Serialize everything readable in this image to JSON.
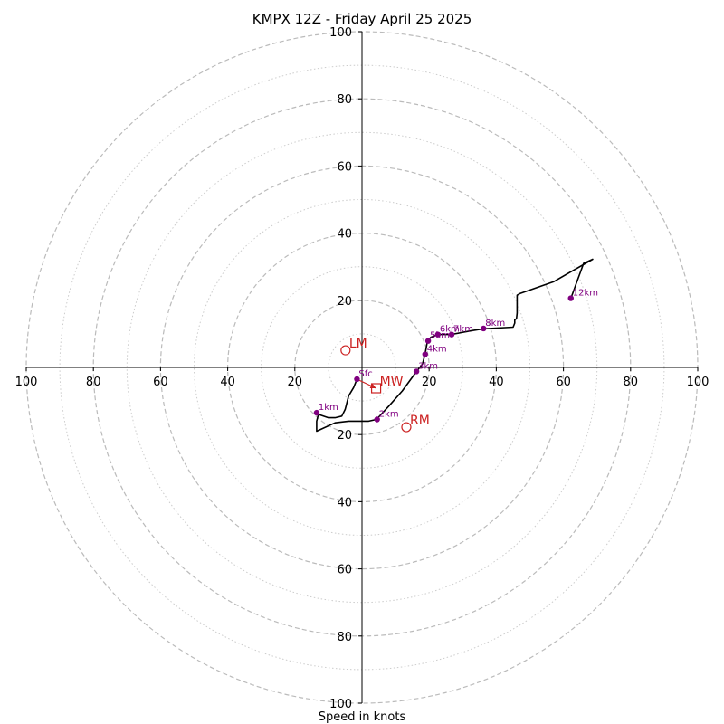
{
  "chart_data": {
    "type": "hodograph",
    "title": "KMPX 12Z - Friday April 25 2025",
    "xlabel": "Speed in knots",
    "range": [
      -100,
      100
    ],
    "ring_spacing": 10,
    "tick_values": [
      20,
      40,
      60,
      80,
      100
    ],
    "colors": {
      "trace": "#000000",
      "height_points": "#800080",
      "motion": "#cc2222",
      "dashed_ring": "#bbbbbb",
      "dotted_ring": "#cccccc"
    },
    "trace_uv": [
      [
        -1.5,
        -3.5
      ],
      [
        -2.5,
        -6
      ],
      [
        -4,
        -8.5
      ],
      [
        -4.5,
        -10.5
      ],
      [
        -5,
        -12.5
      ],
      [
        -6,
        -14.5
      ],
      [
        -8,
        -15
      ],
      [
        -10,
        -15
      ],
      [
        -13,
        -14
      ],
      [
        -13.5,
        -16
      ],
      [
        -13.5,
        -19
      ],
      [
        -8,
        -16.5
      ],
      [
        -4,
        -16
      ],
      [
        0,
        -16
      ],
      [
        2,
        -16
      ],
      [
        4.3,
        -15.5
      ],
      [
        8,
        -11.5
      ],
      [
        12,
        -7
      ],
      [
        16,
        -1.5
      ],
      [
        18,
        1
      ],
      [
        18.8,
        4
      ],
      [
        19.5,
        7.8
      ],
      [
        20.5,
        9
      ],
      [
        22.7,
        9.8
      ],
      [
        26.5,
        9.8
      ],
      [
        33,
        11
      ],
      [
        36.2,
        11.5
      ],
      [
        45,
        12
      ],
      [
        45.5,
        13.2
      ],
      [
        45.5,
        14.2
      ],
      [
        46,
        14.5
      ],
      [
        46.2,
        16.2
      ],
      [
        46.2,
        18.5
      ],
      [
        46.2,
        21.5
      ],
      [
        47,
        22
      ],
      [
        57,
        25.5
      ],
      [
        68.7,
        32.2
      ],
      [
        66,
        31
      ],
      [
        62.2,
        20.6
      ]
    ],
    "height_points": [
      {
        "label": "Sfc",
        "u": -1.5,
        "v": -3.5
      },
      {
        "label": "1km",
        "u": -13.5,
        "v": -13.5
      },
      {
        "label": "2km",
        "u": 4.5,
        "v": -15.5
      },
      {
        "label": "3km",
        "u": 16.2,
        "v": -1.2
      },
      {
        "label": "4km",
        "u": 18.8,
        "v": 3.9
      },
      {
        "label": "5km",
        "u": 19.7,
        "v": 7.9
      },
      {
        "label": "6km",
        "u": 22.6,
        "v": 9.8
      },
      {
        "label": "7km",
        "u": 26.7,
        "v": 9.8
      },
      {
        "label": "8km",
        "u": 36.2,
        "v": 11.6
      },
      {
        "label": "12km",
        "u": 62.2,
        "v": 20.6
      }
    ],
    "storm_motion": [
      {
        "label": "LM",
        "u": -4.9,
        "v": 5.1,
        "marker": "circle"
      },
      {
        "label": "MW",
        "u": 4.2,
        "v": -6.2,
        "marker": "square"
      },
      {
        "label": "RM",
        "u": 13.2,
        "v": -17.8,
        "marker": "circle"
      }
    ]
  }
}
